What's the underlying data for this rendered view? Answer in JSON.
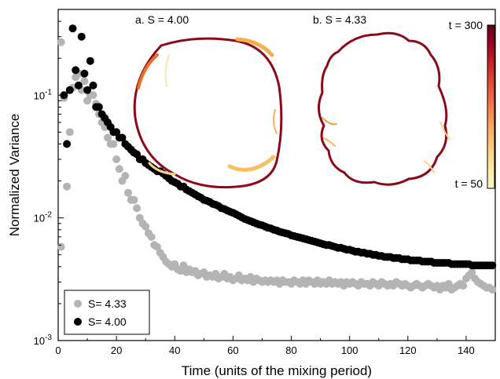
{
  "chart_data": {
    "type": "scatter",
    "title": "",
    "xlabel": "Time (units of the mixing period)",
    "ylabel": "Normalized Variance",
    "xlim": [
      0,
      150
    ],
    "ylim": [
      0.001,
      0.5
    ],
    "yscale": "log",
    "x_ticks": [
      0,
      20,
      40,
      60,
      80,
      100,
      120,
      140
    ],
    "y_ticks": [
      {
        "value": 0.001,
        "base": "10",
        "exp": "-3"
      },
      {
        "value": 0.01,
        "base": "10",
        "exp": "-2"
      },
      {
        "value": 0.1,
        "base": "10",
        "exp": "-1"
      }
    ],
    "grid": false,
    "legend_position": "bottom-left",
    "series": [
      {
        "name": "S= 4.33",
        "color": "#b4b4b4",
        "points": [
          [
            1,
            0.0058
          ],
          [
            1,
            0.27
          ],
          [
            2,
            0.095
          ],
          [
            3,
            0.018
          ],
          [
            4,
            0.05
          ],
          [
            5,
            0.115
          ],
          [
            6,
            0.14
          ],
          [
            7,
            0.15
          ],
          [
            8,
            0.11
          ],
          [
            9,
            0.13
          ],
          [
            10,
            0.09
          ],
          [
            11,
            0.1
          ],
          [
            12,
            0.1
          ],
          [
            13,
            0.085
          ],
          [
            14,
            0.07
          ],
          [
            15,
            0.06
          ],
          [
            16,
            0.055
          ],
          [
            17,
            0.045
          ],
          [
            18,
            0.04
          ],
          [
            19,
            0.04
          ],
          [
            20,
            0.03
          ],
          [
            21,
            0.025
          ],
          [
            22,
            0.02
          ],
          [
            23,
            0.022
          ],
          [
            24,
            0.016
          ],
          [
            25,
            0.014
          ],
          [
            26,
            0.014
          ],
          [
            27,
            0.012
          ],
          [
            28,
            0.01
          ],
          [
            29,
            0.009
          ],
          [
            30,
            0.0085
          ],
          [
            31,
            0.0075
          ],
          [
            32,
            0.007
          ],
          [
            33,
            0.006
          ],
          [
            34,
            0.0058
          ],
          [
            35,
            0.0052
          ],
          [
            36,
            0.0048
          ],
          [
            37,
            0.0044
          ],
          [
            38,
            0.0042
          ],
          [
            39,
            0.004
          ],
          [
            40,
            0.0042
          ],
          [
            41,
            0.0038
          ],
          [
            42,
            0.0037
          ],
          [
            43,
            0.0041
          ],
          [
            44,
            0.0036
          ],
          [
            45,
            0.0038
          ],
          [
            46,
            0.0036
          ],
          [
            47,
            0.0037
          ],
          [
            48,
            0.0034
          ],
          [
            49,
            0.0035
          ],
          [
            50,
            0.0036
          ],
          [
            51,
            0.0033
          ],
          [
            52,
            0.0034
          ],
          [
            53,
            0.0033
          ],
          [
            54,
            0.0035
          ],
          [
            55,
            0.0032
          ],
          [
            56,
            0.0033
          ],
          [
            57,
            0.0035
          ],
          [
            58,
            0.0032
          ],
          [
            59,
            0.0033
          ],
          [
            60,
            0.0031
          ],
          [
            61,
            0.0032
          ],
          [
            62,
            0.0034
          ],
          [
            63,
            0.0031
          ],
          [
            64,
            0.0032
          ],
          [
            65,
            0.0031
          ],
          [
            66,
            0.0033
          ],
          [
            67,
            0.003
          ],
          [
            68,
            0.0032
          ],
          [
            69,
            0.0031
          ],
          [
            70,
            0.003
          ],
          [
            71,
            0.0031
          ],
          [
            72,
            0.003
          ],
          [
            73,
            0.0031
          ],
          [
            74,
            0.003
          ],
          [
            75,
            0.0031
          ],
          [
            76,
            0.0029
          ],
          [
            77,
            0.0031
          ],
          [
            78,
            0.003
          ],
          [
            79,
            0.003
          ],
          [
            80,
            0.0029
          ],
          [
            81,
            0.0031
          ],
          [
            82,
            0.003
          ],
          [
            83,
            0.0029
          ],
          [
            84,
            0.0031
          ],
          [
            85,
            0.0029
          ],
          [
            86,
            0.0031
          ],
          [
            87,
            0.003
          ],
          [
            88,
            0.0029
          ],
          [
            89,
            0.0031
          ],
          [
            90,
            0.0029
          ],
          [
            91,
            0.003
          ],
          [
            92,
            0.0029
          ],
          [
            93,
            0.0031
          ],
          [
            94,
            0.0029
          ],
          [
            95,
            0.003
          ],
          [
            96,
            0.0029
          ],
          [
            97,
            0.003
          ],
          [
            98,
            0.0028
          ],
          [
            99,
            0.003
          ],
          [
            100,
            0.0029
          ],
          [
            101,
            0.003
          ],
          [
            102,
            0.0029
          ],
          [
            103,
            0.0028
          ],
          [
            104,
            0.003
          ],
          [
            105,
            0.0029
          ],
          [
            106,
            0.0029
          ],
          [
            107,
            0.0028
          ],
          [
            108,
            0.003
          ],
          [
            109,
            0.0029
          ],
          [
            110,
            0.0028
          ],
          [
            111,
            0.003
          ],
          [
            112,
            0.0029
          ],
          [
            113,
            0.0028
          ],
          [
            114,
            0.0029
          ],
          [
            115,
            0.0028
          ],
          [
            116,
            0.003
          ],
          [
            117,
            0.0029
          ],
          [
            118,
            0.0028
          ],
          [
            119,
            0.0029
          ],
          [
            120,
            0.0028
          ],
          [
            121,
            0.0027
          ],
          [
            122,
            0.0028
          ],
          [
            123,
            0.0029
          ],
          [
            124,
            0.0028
          ],
          [
            125,
            0.0027
          ],
          [
            126,
            0.0028
          ],
          [
            127,
            0.0029
          ],
          [
            128,
            0.0028
          ],
          [
            129,
            0.0027
          ],
          [
            130,
            0.0028
          ],
          [
            131,
            0.0026
          ],
          [
            132,
            0.0028
          ],
          [
            133,
            0.0027
          ],
          [
            134,
            0.0029
          ],
          [
            135,
            0.0026
          ],
          [
            136,
            0.0027
          ],
          [
            137,
            0.0028
          ],
          [
            138,
            0.0029
          ],
          [
            139,
            0.0028
          ],
          [
            140,
            0.0032
          ],
          [
            141,
            0.0034
          ],
          [
            142,
            0.0036
          ],
          [
            143,
            0.0032
          ],
          [
            144,
            0.003
          ],
          [
            145,
            0.0029
          ],
          [
            146,
            0.0028
          ],
          [
            147,
            0.0027
          ],
          [
            148,
            0.0027
          ],
          [
            149,
            0.0026
          ]
        ]
      },
      {
        "name": "S= 4.00",
        "color": "#000000",
        "points": [
          [
            2,
            0.1
          ],
          [
            3,
            0.04
          ],
          [
            4,
            0.11
          ],
          [
            5,
            0.35
          ],
          [
            6,
            0.16
          ],
          [
            7,
            0.12
          ],
          [
            8,
            0.3
          ],
          [
            9,
            0.15
          ],
          [
            10,
            0.11
          ],
          [
            11,
            0.19
          ],
          [
            12,
            0.12
          ],
          [
            13,
            0.08
          ],
          [
            14,
            0.08
          ],
          [
            15,
            0.07
          ],
          [
            16,
            0.065
          ],
          [
            17,
            0.06
          ],
          [
            18,
            0.055
          ],
          [
            19,
            0.05
          ],
          [
            20,
            0.05
          ],
          [
            21,
            0.045
          ],
          [
            22,
            0.045
          ],
          [
            23,
            0.04
          ],
          [
            24,
            0.038
          ],
          [
            25,
            0.036
          ],
          [
            26,
            0.034
          ],
          [
            27,
            0.033
          ],
          [
            28,
            0.03
          ],
          [
            29,
            0.03
          ],
          [
            30,
            0.028
          ],
          [
            31,
            0.027
          ],
          [
            32,
            0.026
          ],
          [
            33,
            0.025
          ],
          [
            34,
            0.024
          ],
          [
            35,
            0.024
          ],
          [
            36,
            0.023
          ],
          [
            37,
            0.022
          ],
          [
            38,
            0.021
          ],
          [
            39,
            0.02
          ],
          [
            40,
            0.0195
          ],
          [
            41,
            0.019
          ],
          [
            42,
            0.018
          ],
          [
            43,
            0.018
          ],
          [
            44,
            0.017
          ],
          [
            45,
            0.0165
          ],
          [
            46,
            0.016
          ],
          [
            47,
            0.0155
          ],
          [
            48,
            0.015
          ],
          [
            49,
            0.0146
          ],
          [
            50,
            0.014
          ],
          [
            51,
            0.0138
          ],
          [
            52,
            0.0135
          ],
          [
            53,
            0.013
          ],
          [
            54,
            0.0128
          ],
          [
            55,
            0.0125
          ],
          [
            56,
            0.012
          ],
          [
            57,
            0.0118
          ],
          [
            58,
            0.0115
          ],
          [
            59,
            0.0112
          ],
          [
            60,
            0.011
          ],
          [
            61,
            0.0107
          ],
          [
            62,
            0.0104
          ],
          [
            63,
            0.0101
          ],
          [
            64,
            0.0098
          ],
          [
            65,
            0.0096
          ],
          [
            66,
            0.0094
          ],
          [
            67,
            0.0092
          ],
          [
            68,
            0.009
          ],
          [
            69,
            0.0088
          ],
          [
            70,
            0.0087
          ],
          [
            71,
            0.0085
          ],
          [
            72,
            0.0083
          ],
          [
            73,
            0.0082
          ],
          [
            74,
            0.008
          ],
          [
            75,
            0.0079
          ],
          [
            76,
            0.0077
          ],
          [
            77,
            0.0076
          ],
          [
            78,
            0.0075
          ],
          [
            79,
            0.0074
          ],
          [
            80,
            0.0072
          ],
          [
            81,
            0.0071
          ],
          [
            82,
            0.007
          ],
          [
            83,
            0.0069
          ],
          [
            84,
            0.0068
          ],
          [
            85,
            0.0067
          ],
          [
            86,
            0.0066
          ],
          [
            87,
            0.0065
          ],
          [
            88,
            0.0064
          ],
          [
            89,
            0.0063
          ],
          [
            90,
            0.0062
          ],
          [
            91,
            0.0061
          ],
          [
            92,
            0.006
          ],
          [
            93,
            0.006
          ],
          [
            94,
            0.0059
          ],
          [
            95,
            0.0058
          ],
          [
            96,
            0.0057
          ],
          [
            97,
            0.0057
          ],
          [
            98,
            0.0056
          ],
          [
            99,
            0.0055
          ],
          [
            100,
            0.0055
          ],
          [
            101,
            0.0054
          ],
          [
            102,
            0.0053
          ],
          [
            103,
            0.0053
          ],
          [
            104,
            0.0052
          ],
          [
            105,
            0.0052
          ],
          [
            106,
            0.0051
          ],
          [
            107,
            0.0051
          ],
          [
            108,
            0.005
          ],
          [
            109,
            0.005
          ],
          [
            110,
            0.0049
          ],
          [
            111,
            0.0049
          ],
          [
            112,
            0.0048
          ],
          [
            113,
            0.0048
          ],
          [
            114,
            0.0048
          ],
          [
            115,
            0.0047
          ],
          [
            116,
            0.0047
          ],
          [
            117,
            0.0047
          ],
          [
            118,
            0.0046
          ],
          [
            119,
            0.0046
          ],
          [
            120,
            0.0046
          ],
          [
            121,
            0.0045
          ],
          [
            122,
            0.0045
          ],
          [
            123,
            0.0045
          ],
          [
            124,
            0.0045
          ],
          [
            125,
            0.0044
          ],
          [
            126,
            0.0044
          ],
          [
            127,
            0.0044
          ],
          [
            128,
            0.0044
          ],
          [
            129,
            0.0043
          ],
          [
            130,
            0.0043
          ],
          [
            131,
            0.0043
          ],
          [
            132,
            0.0043
          ],
          [
            133,
            0.0043
          ],
          [
            134,
            0.0043
          ],
          [
            135,
            0.0042
          ],
          [
            136,
            0.0042
          ],
          [
            137,
            0.0042
          ],
          [
            138,
            0.0042
          ],
          [
            139,
            0.0042
          ],
          [
            140,
            0.0042
          ],
          [
            141,
            0.0042
          ],
          [
            142,
            0.0041
          ],
          [
            143,
            0.0041
          ],
          [
            144,
            0.0041
          ],
          [
            145,
            0.0041
          ],
          [
            146,
            0.0041
          ],
          [
            147,
            0.0041
          ],
          [
            148,
            0.0041
          ],
          [
            149,
            0.0041
          ]
        ]
      }
    ],
    "insets": [
      {
        "label": "a. S = 4.00"
      },
      {
        "label": "b. S = 4.33"
      }
    ],
    "colorbar": {
      "top_label": "t = 300",
      "bottom_label": "t = 50",
      "colors": [
        "#fff7c6",
        "#fee08b",
        "#fdae61",
        "#f46d43",
        "#d73027",
        "#a50026",
        "#67001f"
      ]
    }
  }
}
